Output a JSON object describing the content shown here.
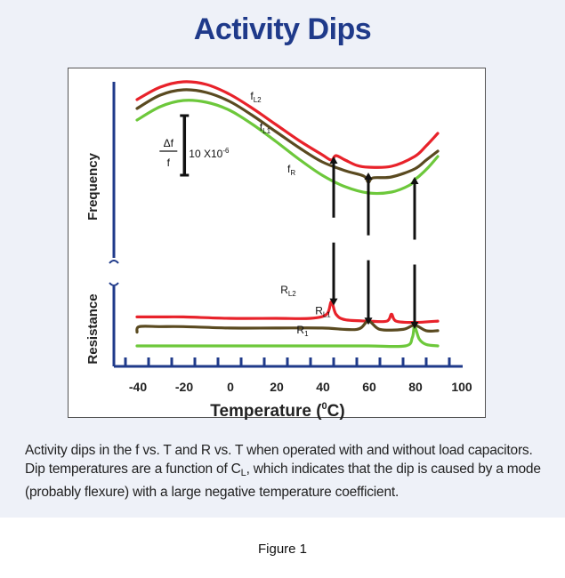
{
  "chart_data": {
    "type": "line",
    "title": "Activity Dips",
    "xlabel": "Temperature (°C)",
    "xlabel_main": "Temperature (",
    "xlabel_sup": "0",
    "xlabel_end": "C)",
    "ylabel_top": "Frequency",
    "ylabel_bottom": "Resistance",
    "xlim": [
      -50,
      100
    ],
    "x_ticks": [
      -40,
      -20,
      0,
      20,
      40,
      60,
      80,
      100
    ],
    "scale_bar": {
      "delta": "Δf",
      "over": "f",
      "value": "10 X10",
      "exp": "-6"
    },
    "frequency_series": [
      {
        "name": "fL2",
        "label_main": "f",
        "label_sub": "L2",
        "color": "#e8222a",
        "x": [
          -40,
          -30,
          -20,
          -10,
          0,
          10,
          20,
          30,
          40,
          44,
          46,
          50,
          55,
          60,
          70,
          80,
          85,
          90
        ],
        "y": [
          38,
          52,
          58,
          55,
          44,
          28,
          10,
          -8,
          -24,
          -30,
          -25,
          -30,
          -36,
          -38,
          -37,
          -26,
          -14,
          0
        ]
      },
      {
        "name": "fL1",
        "label_main": "f",
        "label_sub": "L1",
        "color": "#5a4a20",
        "x": [
          -40,
          -30,
          -20,
          -10,
          0,
          10,
          20,
          30,
          40,
          50,
          58,
          60,
          62,
          70,
          80,
          85,
          90
        ],
        "y": [
          28,
          43,
          49,
          46,
          36,
          20,
          2,
          -16,
          -32,
          -42,
          -48,
          -55,
          -50,
          -49,
          -40,
          -30,
          -20
        ]
      },
      {
        "name": "fR",
        "label_main": "f",
        "label_sub": "R",
        "color": "#6dc83b",
        "x": [
          -40,
          -30,
          -20,
          -10,
          0,
          10,
          20,
          30,
          40,
          50,
          60,
          70,
          78,
          80,
          82,
          86,
          90
        ],
        "y": [
          15,
          30,
          37,
          35,
          26,
          10,
          -9,
          -29,
          -47,
          -60,
          -67,
          -66,
          -58,
          -52,
          -48,
          -38,
          -26
        ]
      }
    ],
    "resistance_series": [
      {
        "name": "RL2",
        "label_main": "R",
        "label_sub": "L2",
        "color": "#e8222a",
        "x": [
          -40,
          -30,
          -20,
          0,
          20,
          35,
          42,
          44,
          46,
          50,
          60,
          68,
          70,
          72,
          80,
          90
        ],
        "y": [
          21,
          21,
          21,
          20,
          20,
          20,
          23,
          32,
          23,
          19,
          18,
          18,
          23,
          18,
          17,
          18
        ]
      },
      {
        "name": "RL1",
        "label_main": "R",
        "label_sub": "L1",
        "color": "#5a4a20",
        "x": [
          -40,
          -39,
          -30,
          -20,
          0,
          20,
          40,
          55,
          60,
          65,
          75,
          80,
          85,
          90
        ],
        "y": [
          10,
          14,
          14,
          14,
          13,
          13,
          13,
          12,
          18,
          12,
          12,
          15,
          11,
          11
        ]
      },
      {
        "name": "R1",
        "label_main": "R",
        "label_sub": "1",
        "color": "#6dc83b",
        "x": [
          -40,
          -30,
          -20,
          0,
          20,
          40,
          60,
          76,
          79,
          80,
          82,
          85,
          90
        ],
        "y": [
          0,
          0,
          0,
          0,
          0,
          0,
          0,
          0,
          6,
          14,
          5,
          1,
          0
        ]
      }
    ],
    "dip_arrows": [
      {
        "x": 45,
        "color": "#111111"
      },
      {
        "x": 60,
        "color": "#111111"
      },
      {
        "x": 80,
        "color": "#111111"
      }
    ]
  },
  "caption": {
    "text_before_sub": "Activity dips in the f vs. T and R vs. T when operated with and without load capacitors.  Dip temperatures are a function of C",
    "sub": "L",
    "text_after_sub": ", which indicates that the dip is caused by a mode (probably flexure) with a large negative temperature coefficient."
  },
  "figure_label": "Figure 1"
}
